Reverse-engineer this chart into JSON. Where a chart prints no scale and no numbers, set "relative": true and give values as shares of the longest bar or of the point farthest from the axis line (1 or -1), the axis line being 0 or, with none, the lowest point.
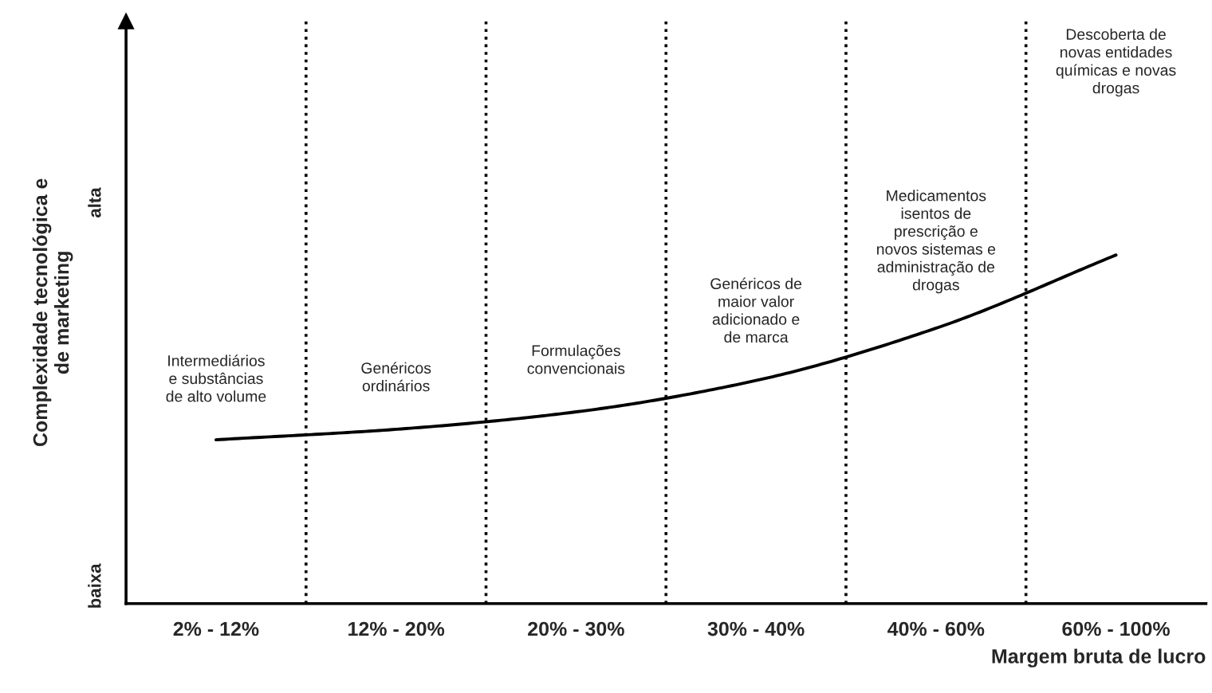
{
  "chart_data": {
    "type": "line",
    "xlabel": "Margem bruta de lucro",
    "ylabel": "Complexidade tecnológica e\nde marketing",
    "categories": [
      "2% - 12%",
      "12% - 20%",
      "20% - 30%",
      "30% - 40%",
      "40% - 60%",
      "60% - 100%"
    ],
    "relative": true,
    "series": [
      {
        "color": "#000000",
        "values": [
          0.47,
          0.5,
          0.55,
          0.64,
          0.79,
          1
        ]
      }
    ],
    "annotations": [
      "Intermediários\ne substâncias\nde alto volume",
      "Genéricos\nordinários",
      "Formulações\nconvencionais",
      "Genéricos de\nmaior valor\nadicionado e\nde marca",
      "Medicamentos\nisentos de\nprescrição e\nnovos sistemas e\nadministração de\ndrogas",
      "Descoberta de\nnovas entidades\nquímicas e novas\ndrogas",
      "baixa",
      "alta"
    ],
    "grid": false,
    "legend": false,
    "marker": "none",
    "line_style": "solid"
  }
}
